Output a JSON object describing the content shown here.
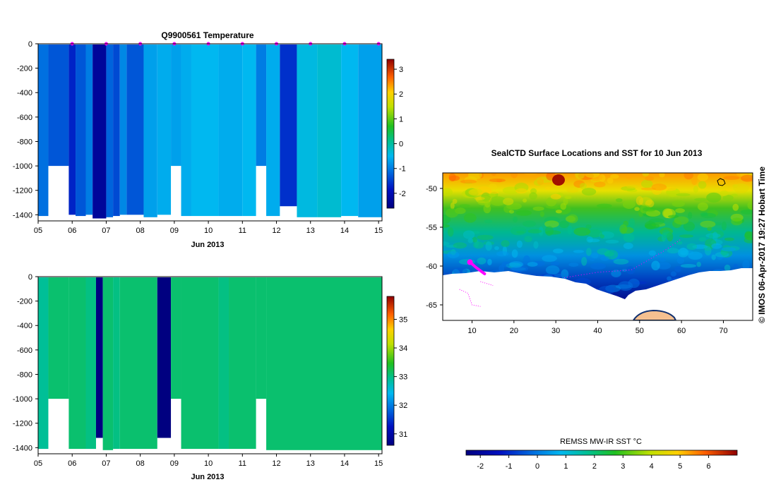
{
  "chart_data": [
    {
      "type": "heatmap",
      "title": "Q9900561  Temperature",
      "xlabel": "Jun 2013",
      "ylabel": "",
      "x_ticks": [
        "05",
        "06",
        "07",
        "08",
        "09",
        "10",
        "11",
        "12",
        "13",
        "14",
        "15"
      ],
      "y_ticks": [
        0,
        -200,
        -400,
        -600,
        -800,
        -1000,
        -1200,
        -1400
      ],
      "ylim": [
        -1450,
        0
      ],
      "xlim": [
        5.0,
        15.1
      ],
      "colorbar": {
        "ticks": [
          -2,
          -1,
          0,
          1,
          2,
          3
        ],
        "range": [
          -2.6,
          3.4
        ]
      },
      "markers": {
        "color": "#ff00ff",
        "x": [
          6,
          7,
          8,
          9,
          10,
          11,
          12,
          13,
          14,
          15
        ]
      },
      "profiles": [
        {
          "x0": 5.0,
          "x1": 5.3,
          "value": -1.1,
          "depth": -1410
        },
        {
          "x0": 5.3,
          "x1": 5.9,
          "value": -1.3,
          "depth": -1000
        },
        {
          "x0": 5.9,
          "x1": 6.1,
          "value": -1.7,
          "depth": -1400
        },
        {
          "x0": 6.1,
          "x1": 6.4,
          "value": -1.3,
          "depth": -1410
        },
        {
          "x0": 6.4,
          "x1": 6.6,
          "value": -1.0,
          "depth": -1400
        },
        {
          "x0": 6.6,
          "x1": 7.0,
          "value": -2.3,
          "depth": -1430
        },
        {
          "x0": 7.0,
          "x1": 7.2,
          "value": -1.2,
          "depth": -1420
        },
        {
          "x0": 7.2,
          "x1": 7.4,
          "value": -1.4,
          "depth": -1410
        },
        {
          "x0": 7.4,
          "x1": 7.6,
          "value": -0.9,
          "depth": -1400
        },
        {
          "x0": 7.6,
          "x1": 8.1,
          "value": -1.3,
          "depth": -1400
        },
        {
          "x0": 8.1,
          "x1": 8.5,
          "value": -0.7,
          "depth": -1420
        },
        {
          "x0": 8.5,
          "x1": 8.9,
          "value": -0.6,
          "depth": -1400
        },
        {
          "x0": 8.9,
          "x1": 9.2,
          "value": -0.7,
          "depth": -1000
        },
        {
          "x0": 9.2,
          "x1": 9.5,
          "value": -0.6,
          "depth": -1410
        },
        {
          "x0": 9.5,
          "x1": 10.3,
          "value": -0.5,
          "depth": -1410
        },
        {
          "x0": 10.3,
          "x1": 11.0,
          "value": -0.6,
          "depth": -1410
        },
        {
          "x0": 11.0,
          "x1": 11.4,
          "value": -0.5,
          "depth": -1410
        },
        {
          "x0": 11.4,
          "x1": 11.7,
          "value": -1.0,
          "depth": -1000
        },
        {
          "x0": 11.7,
          "x1": 12.1,
          "value": -0.6,
          "depth": -1410
        },
        {
          "x0": 12.1,
          "x1": 12.6,
          "value": -1.6,
          "depth": -1330
        },
        {
          "x0": 12.6,
          "x1": 13.2,
          "value": -0.4,
          "depth": -1420
        },
        {
          "x0": 13.2,
          "x1": 13.9,
          "value": -0.3,
          "depth": -1420
        },
        {
          "x0": 13.9,
          "x1": 14.4,
          "value": -0.5,
          "depth": -1410
        },
        {
          "x0": 14.4,
          "x1": 15.1,
          "value": -0.7,
          "depth": -1420
        }
      ]
    },
    {
      "type": "heatmap",
      "title": "",
      "xlabel": "Jun 2013",
      "ylabel": "",
      "x_ticks": [
        "05",
        "06",
        "07",
        "08",
        "09",
        "10",
        "11",
        "12",
        "13",
        "14",
        "15"
      ],
      "y_ticks": [
        0,
        -200,
        -400,
        -600,
        -800,
        -1000,
        -1200,
        -1400
      ],
      "ylim": [
        -1450,
        0
      ],
      "xlim": [
        5.0,
        15.1
      ],
      "colorbar": {
        "ticks": [
          31,
          32,
          33,
          34,
          35
        ],
        "range": [
          30.6,
          35.8
        ]
      },
      "profiles": [
        {
          "x0": 5.0,
          "x1": 5.3,
          "value": 32.9,
          "depth": -1410
        },
        {
          "x0": 5.3,
          "x1": 5.9,
          "value": 33.1,
          "depth": -1000
        },
        {
          "x0": 5.9,
          "x1": 6.4,
          "value": 33.1,
          "depth": -1410
        },
        {
          "x0": 6.4,
          "x1": 6.7,
          "value": 33.0,
          "depth": -1410
        },
        {
          "x0": 6.7,
          "x1": 6.9,
          "value": 30.6,
          "depth": -1320
        },
        {
          "x0": 6.9,
          "x1": 7.2,
          "value": 33.1,
          "depth": -1420
        },
        {
          "x0": 7.2,
          "x1": 7.4,
          "value": 33.0,
          "depth": -1410
        },
        {
          "x0": 7.4,
          "x1": 8.5,
          "value": 33.1,
          "depth": -1410
        },
        {
          "x0": 8.5,
          "x1": 8.9,
          "value": 30.6,
          "depth": -1320
        },
        {
          "x0": 8.9,
          "x1": 9.2,
          "value": 33.1,
          "depth": -1000
        },
        {
          "x0": 9.2,
          "x1": 10.3,
          "value": 33.1,
          "depth": -1410
        },
        {
          "x0": 10.3,
          "x1": 10.6,
          "value": 33.0,
          "depth": -1410
        },
        {
          "x0": 10.6,
          "x1": 11.4,
          "value": 33.1,
          "depth": -1410
        },
        {
          "x0": 11.4,
          "x1": 11.7,
          "value": 33.1,
          "depth": -1000
        },
        {
          "x0": 11.7,
          "x1": 15.1,
          "value": 33.1,
          "depth": -1420
        }
      ]
    },
    {
      "type": "heatmap",
      "title": "SealCTD Surface Locations and SST for 10 Jun 2013",
      "xlabel": "",
      "ylabel": "",
      "x_ticks": [
        10,
        20,
        30,
        40,
        50,
        60,
        70
      ],
      "y_ticks": [
        -50,
        -55,
        -60,
        -65
      ],
      "xlim": [
        3,
        77
      ],
      "ylim": [
        -67,
        -48
      ],
      "colorbar": {
        "label": "REMSS MW-IR SST °C",
        "ticks": [
          -2,
          -1,
          0,
          1,
          2,
          3,
          4,
          5,
          6
        ],
        "range": [
          -2.5,
          7.0
        ]
      }
    }
  ],
  "side_note": "© IMOS 06-Apr-2017 19:27 Hobart Time"
}
